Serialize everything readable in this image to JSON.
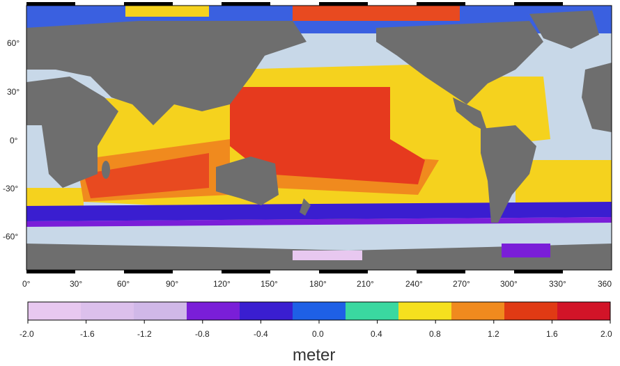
{
  "map": {
    "lat_labels": [
      "60°",
      "30°",
      "0°",
      "-30°",
      "-60°"
    ],
    "lon_labels": [
      "0°",
      "30°",
      "60°",
      "90°",
      "120°",
      "150°",
      "180°",
      "210°",
      "240°",
      "270°",
      "300°",
      "330°",
      "360"
    ],
    "colors": {
      "land": "#6e6e6e",
      "ocean_base": "#c8d8e8",
      "warm_pool": "#e63a1e",
      "subtropic": "#f5d21e",
      "transition": "#f08a1e",
      "southern_band": "#3a1ed0",
      "polar": "#7a1ed8"
    }
  },
  "colorbar": {
    "ticks": [
      "-2.0",
      "-1.6",
      "-1.2",
      "-0.8",
      "-0.4",
      "0.0",
      "0.4",
      "0.8",
      "1.2",
      "1.6",
      "2.0"
    ],
    "unit_label": "meter",
    "segments": [
      "#e8c8f0",
      "#dcc0ec",
      "#d0b8e8",
      "#7a1ed8",
      "#3a1ed0",
      "#1e60e6",
      "#3ad8a0",
      "#f5e01e",
      "#f08a1e",
      "#e03a14",
      "#d21428"
    ]
  }
}
